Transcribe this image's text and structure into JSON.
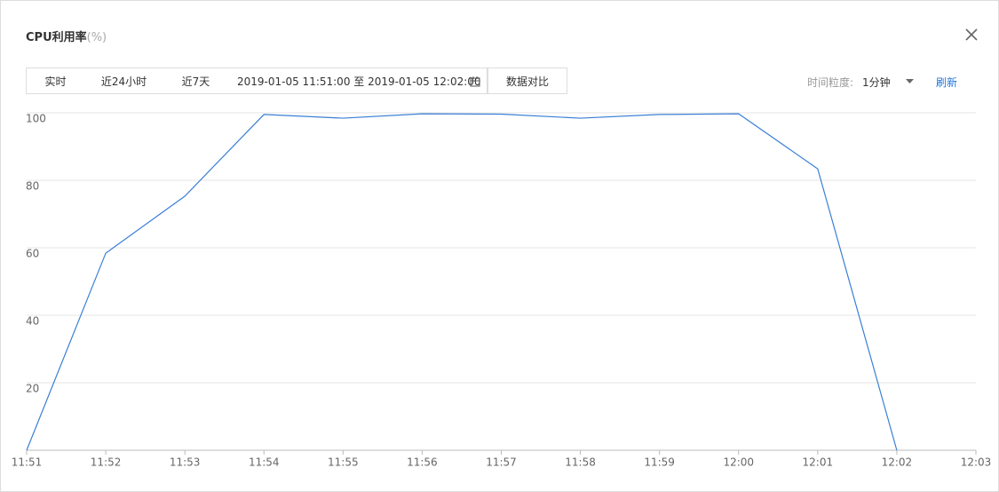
{
  "header": {
    "title": "CPU利用率",
    "unit": "(%)"
  },
  "toolbar": {
    "tabs": [
      "实时",
      "近24小时",
      "近7天"
    ],
    "date_range": "2019-01-05 11:51:00 至 2019-01-05 12:02:00",
    "compare": "数据对比",
    "granularity_label": "时间粒度:",
    "granularity": "1分钟",
    "refresh": "刷新"
  },
  "chart_data": {
    "type": "line",
    "categories": [
      "11:51",
      "11:52",
      "11:53",
      "11:54",
      "11:55",
      "11:56",
      "11:57",
      "11:58",
      "11:59",
      "12:00",
      "12:01",
      "12:02",
      "12:03"
    ],
    "values": [
      0,
      58.4,
      75.3,
      99.5,
      98.4,
      99.7,
      99.6,
      98.4,
      99.5,
      99.7,
      83.4,
      0,
      null
    ],
    "color": "#3a7fd5",
    "ylim": [
      0,
      100
    ],
    "yticks": [
      20,
      40,
      60,
      80,
      100
    ],
    "grid": true
  }
}
